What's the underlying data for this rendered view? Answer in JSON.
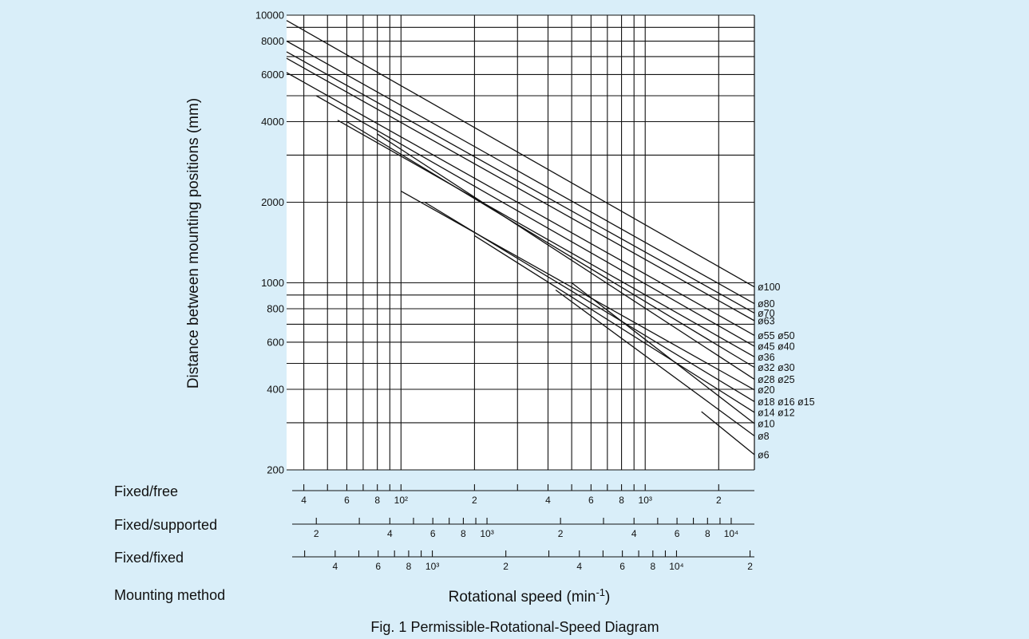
{
  "chart_data": {
    "type": "line",
    "title": "",
    "caption": "Fig. 1  Permissible-Rotational-Speed Diagram",
    "ylabel": "Distance between mounting positions (mm)",
    "xlabel_main": "Rotational speed (min",
    "xlabel_sup": "-1",
    "x_unit": "Rotational speed (min^-1), Fixed/free scale",
    "y_scale": "log",
    "x_scale": "log",
    "ylim": [
      200,
      10000
    ],
    "xlim": [
      34,
      2800
    ],
    "y_ticks": [
      {
        "value": 10000,
        "label": "10000"
      },
      {
        "value": 8000,
        "label": "8000"
      },
      {
        "value": 6000,
        "label": "6000"
      },
      {
        "value": 4000,
        "label": "4000"
      },
      {
        "value": 2000,
        "label": "2000"
      },
      {
        "value": 1000,
        "label": "1000"
      },
      {
        "value": 800,
        "label": "800"
      },
      {
        "value": 600,
        "label": "600"
      },
      {
        "value": 400,
        "label": "400"
      },
      {
        "value": 200,
        "label": "200"
      }
    ],
    "y_gridlines": [
      10000,
      9000,
      8000,
      7000,
      6000,
      5000,
      4000,
      3000,
      2000,
      1000,
      900,
      800,
      700,
      600,
      500,
      400,
      300,
      200
    ],
    "x_gridlines": [
      40,
      50,
      60,
      70,
      80,
      90,
      100,
      200,
      300,
      400,
      500,
      600,
      700,
      800,
      900,
      1000,
      2000
    ],
    "grid": true,
    "legend": "right-edge labels",
    "series": [
      {
        "name": "ø100",
        "x": [
          34,
          2800
        ],
        "y": [
          9550,
          965
        ]
      },
      {
        "name": "ø80",
        "x": [
          34,
          2800
        ],
        "y": [
          8000,
          836
        ]
      },
      {
        "name": "ø70",
        "x": [
          34,
          2800
        ],
        "y": [
          7300,
          771
        ]
      },
      {
        "name": "ø63",
        "x": [
          34,
          2800
        ],
        "y": [
          6900,
          722
        ]
      },
      {
        "name": "ø55 ø50",
        "x": [
          34,
          2800
        ],
        "y": [
          6100,
          636
        ]
      },
      {
        "name": "ø45 ø40",
        "x": [
          45,
          2800
        ],
        "y": [
          5000,
          579
        ]
      },
      {
        "name": "ø36",
        "x": [
          55,
          2800
        ],
        "y": [
          4050,
          529
        ]
      },
      {
        "name": "ø32 ø30",
        "x": [
          60,
          2800
        ],
        "y": [
          4000,
          483
        ]
      },
      {
        "name": "ø28 ø25",
        "x": [
          80,
          2800
        ],
        "y": [
          3600,
          436
        ]
      },
      {
        "name": "ø20",
        "x": [
          100,
          2800
        ],
        "y": [
          2200,
          398
        ]
      },
      {
        "name": "ø18 ø16 ø15",
        "x": [
          125,
          2800
        ],
        "y": [
          2000,
          360
        ]
      },
      {
        "name": "ø14 ø12",
        "x": [
          200,
          2800
        ],
        "y": [
          1500,
          328
        ]
      },
      {
        "name": "ø10",
        "x": [
          500,
          2800
        ],
        "y": [
          1000,
          298
        ]
      },
      {
        "name": "ø8",
        "x": [
          430,
          2800
        ],
        "y": [
          940,
          268
        ]
      },
      {
        "name": "ø6",
        "x": [
          1700,
          2800
        ],
        "y": [
          330,
          228
        ]
      }
    ],
    "mounting_scales": [
      {
        "name": "Fixed/free",
        "ticks": [
          {
            "value": 40,
            "label": "4"
          },
          {
            "value": 50,
            "label": ""
          },
          {
            "value": 60,
            "label": "6"
          },
          {
            "value": 70,
            "label": ""
          },
          {
            "value": 80,
            "label": "8"
          },
          {
            "value": 90,
            "label": ""
          },
          {
            "value": 100,
            "label": "10²"
          },
          {
            "value": 200,
            "label": "2"
          },
          {
            "value": 300,
            "label": ""
          },
          {
            "value": 400,
            "label": "4"
          },
          {
            "value": 500,
            "label": ""
          },
          {
            "value": 600,
            "label": "6"
          },
          {
            "value": 700,
            "label": ""
          },
          {
            "value": 800,
            "label": "8"
          },
          {
            "value": 900,
            "label": ""
          },
          {
            "value": 1000,
            "label": "10³"
          },
          {
            "value": 2000,
            "label": "2"
          },
          {
            "value": 3000,
            "label": ""
          }
        ]
      },
      {
        "name": "Fixed/supported",
        "ticks": [
          {
            "value": 200,
            "label": "2"
          },
          {
            "value": 300,
            "label": ""
          },
          {
            "value": 400,
            "label": "4"
          },
          {
            "value": 500,
            "label": ""
          },
          {
            "value": 600,
            "label": "6"
          },
          {
            "value": 700,
            "label": ""
          },
          {
            "value": 800,
            "label": "8"
          },
          {
            "value": 900,
            "label": ""
          },
          {
            "value": 1000,
            "label": "10³"
          },
          {
            "value": 2000,
            "label": "2"
          },
          {
            "value": 3000,
            "label": ""
          },
          {
            "value": 4000,
            "label": "4"
          },
          {
            "value": 5000,
            "label": ""
          },
          {
            "value": 6000,
            "label": "6"
          },
          {
            "value": 7000,
            "label": ""
          },
          {
            "value": 8000,
            "label": "8"
          },
          {
            "value": 9000,
            "label": ""
          },
          {
            "value": 10000,
            "label": "10⁴"
          }
        ]
      },
      {
        "name": "Fixed/fixed",
        "ticks": [
          {
            "value": 300,
            "label": ""
          },
          {
            "value": 400,
            "label": "4"
          },
          {
            "value": 500,
            "label": ""
          },
          {
            "value": 600,
            "label": "6"
          },
          {
            "value": 700,
            "label": ""
          },
          {
            "value": 800,
            "label": "8"
          },
          {
            "value": 900,
            "label": ""
          },
          {
            "value": 1000,
            "label": "10³"
          },
          {
            "value": 2000,
            "label": "2"
          },
          {
            "value": 3000,
            "label": ""
          },
          {
            "value": 4000,
            "label": "4"
          },
          {
            "value": 5000,
            "label": ""
          },
          {
            "value": 6000,
            "label": "6"
          },
          {
            "value": 7000,
            "label": ""
          },
          {
            "value": 8000,
            "label": "8"
          },
          {
            "value": 9000,
            "label": ""
          },
          {
            "value": 10000,
            "label": "10⁴"
          },
          {
            "value": 20000,
            "label": "2"
          }
        ]
      }
    ],
    "mounting_method_label": "Mounting method"
  },
  "colors": {
    "background": "#d9eef9",
    "plot_background": "#ffffff",
    "ink": "#111111"
  }
}
